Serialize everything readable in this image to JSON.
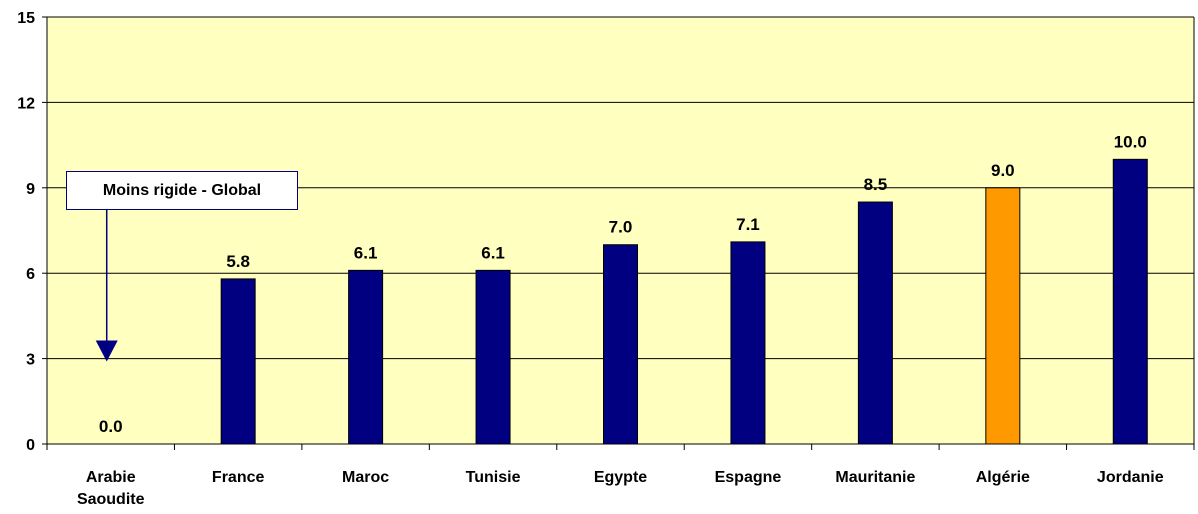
{
  "chart_data": {
    "type": "bar",
    "title": "",
    "xlabel": "",
    "ylabel": "",
    "ylim": [
      0,
      15
    ],
    "yticks": [
      0,
      3,
      6,
      9,
      12,
      15
    ],
    "grid": true,
    "categories": [
      [
        "Arabie",
        "Saoudite"
      ],
      [
        "France"
      ],
      [
        "Maroc"
      ],
      [
        "Tunisie"
      ],
      [
        "Egypte"
      ],
      [
        "Espagne"
      ],
      [
        "Mauritanie"
      ],
      [
        "Algérie"
      ],
      [
        "Jordanie"
      ]
    ],
    "values": [
      0.0,
      5.8,
      6.1,
      6.1,
      7.0,
      7.1,
      8.5,
      9.0,
      10.0
    ],
    "value_labels": [
      "0.0",
      "5.8",
      "6.1",
      "6.1",
      "7.0",
      "7.1",
      "8.5",
      "9.0",
      "10.0"
    ],
    "highlight_index": 7,
    "annotation": {
      "text": "Moins rigide - Global",
      "points_to_category": 0,
      "arrow_value": 2.9
    },
    "colors": {
      "plot_background": "#ffffc0",
      "bar": "#000080",
      "highlight_bar": "#ff9900",
      "grid": "#000000",
      "axis": "#000000"
    }
  }
}
